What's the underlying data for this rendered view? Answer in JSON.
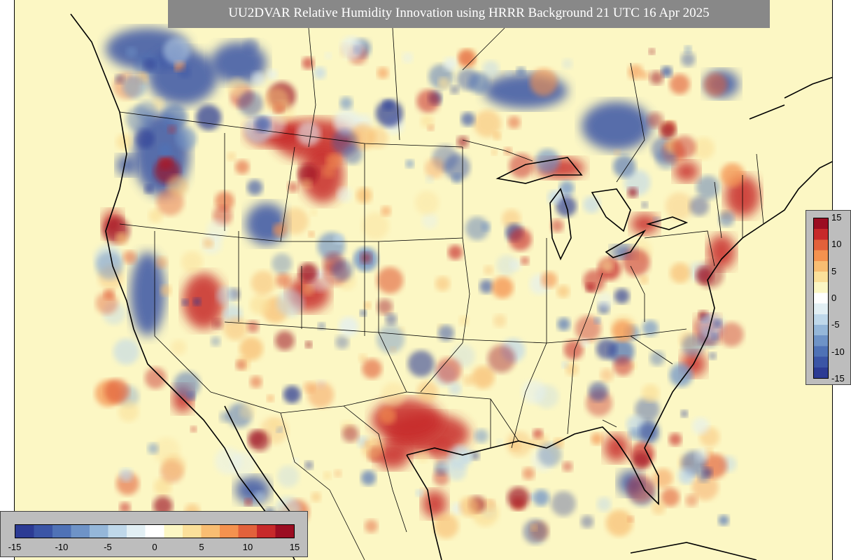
{
  "title": "UU2DVAR Relative Humidity Innovation using HRRR Background 21 UTC 16 Apr 2025",
  "colorbar": {
    "min": -15,
    "max": 15,
    "ticks_horizontal": [
      "-15",
      "-10",
      "-5",
      "0",
      "5",
      "10",
      "15"
    ],
    "ticks_vertical": [
      "15",
      "10",
      "5",
      "0",
      "-5",
      "-10",
      "-15"
    ],
    "colors": [
      "#2c3b94",
      "#3b55a6",
      "#4f72b6",
      "#6e93c7",
      "#95b7d9",
      "#bfd8ea",
      "#e2eff4",
      "#ffffff",
      "#fcf7c4",
      "#fbe09a",
      "#f8bd72",
      "#f4924f",
      "#e2613b",
      "#c7292a",
      "#9b0d22"
    ]
  },
  "map": {
    "background_color": "#fcf7c4",
    "features": [
      "state-borders",
      "country-borders",
      "coastlines",
      "great-lakes"
    ]
  }
}
